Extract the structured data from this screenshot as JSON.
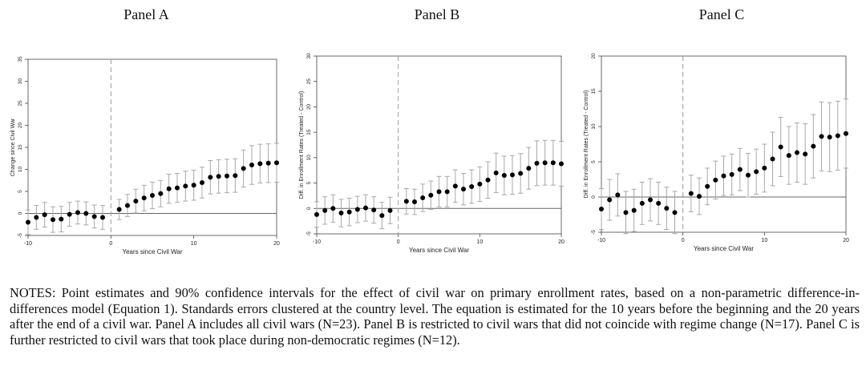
{
  "chart_data": [
    {
      "type": "scatter",
      "title": "Panel A",
      "xlabel": "Years since Civil War",
      "ylabel": "Change since Civil War",
      "xlim": [
        -10,
        20
      ],
      "ylim": [
        -5,
        35
      ],
      "xticks": [
        -10,
        0,
        10,
        20
      ],
      "yticks": [
        -5,
        0,
        5,
        10,
        15,
        20,
        25,
        30,
        35
      ],
      "reference_x": 0,
      "reference_y": 0,
      "x": [
        -10,
        -9,
        -8,
        -7,
        -6,
        -5,
        -4,
        -3,
        -2,
        -1,
        1,
        2,
        3,
        4,
        5,
        6,
        7,
        8,
        9,
        10,
        11,
        12,
        13,
        14,
        15,
        16,
        17,
        18,
        19,
        20
      ],
      "y": [
        -2.0,
        -0.9,
        -0.3,
        -1.4,
        -1.3,
        -0.2,
        0.2,
        0.0,
        -0.7,
        -0.9,
        0.9,
        1.8,
        2.8,
        3.5,
        4.1,
        4.5,
        5.6,
        5.8,
        6.2,
        6.4,
        7.0,
        8.2,
        8.4,
        8.5,
        8.6,
        10.2,
        11.0,
        11.3,
        11.4,
        11.5
      ],
      "ci_low": [
        -4.8,
        -3.6,
        -3.1,
        -4.3,
        -4.2,
        -2.9,
        -2.4,
        -2.6,
        -3.3,
        -3.6,
        -1.4,
        -0.7,
        0.1,
        0.6,
        1.1,
        1.5,
        2.3,
        2.5,
        2.8,
        3.0,
        3.5,
        4.4,
        4.6,
        4.7,
        4.8,
        6.0,
        6.6,
        6.9,
        7.0,
        7.1
      ],
      "ci_high": [
        0.8,
        1.8,
        2.5,
        1.5,
        1.6,
        2.5,
        2.8,
        2.6,
        1.9,
        1.8,
        3.2,
        4.3,
        5.5,
        6.4,
        7.1,
        7.5,
        8.9,
        9.1,
        9.6,
        9.8,
        10.5,
        12.0,
        12.2,
        12.3,
        12.4,
        14.4,
        15.4,
        15.7,
        15.8,
        15.9
      ]
    },
    {
      "type": "scatter",
      "title": "Panel B",
      "xlabel": "Years since Civil War",
      "ylabel": "Diff. in Enrollment Rates (Treated - Control)",
      "xlim": [
        -10,
        20
      ],
      "ylim": [
        -5,
        30
      ],
      "xticks": [
        -10,
        0,
        10,
        20
      ],
      "yticks": [
        -5,
        0,
        5,
        10,
        15,
        20,
        25,
        30
      ],
      "reference_x": 0,
      "reference_y": 0,
      "x": [
        -10,
        -9,
        -8,
        -7,
        -6,
        -5,
        -4,
        -3,
        -2,
        -1,
        1,
        2,
        3,
        4,
        5,
        6,
        7,
        8,
        9,
        10,
        11,
        12,
        13,
        14,
        15,
        16,
        17,
        18,
        19,
        20
      ],
      "y": [
        -1.2,
        -0.4,
        0.0,
        -0.9,
        -0.7,
        -0.2,
        0.1,
        -0.3,
        -1.4,
        -0.4,
        1.4,
        1.3,
        2.1,
        2.6,
        3.3,
        3.3,
        4.4,
        3.8,
        4.3,
        4.8,
        5.6,
        7.0,
        6.5,
        6.6,
        6.9,
        7.9,
        8.9,
        9.0,
        9.0,
        8.8
      ],
      "ci_low": [
        -3.7,
        -3.1,
        -2.7,
        -3.6,
        -3.4,
        -2.8,
        -2.5,
        -2.9,
        -4.0,
        -3.0,
        -1.1,
        -1.2,
        -0.6,
        -0.2,
        0.3,
        0.3,
        1.2,
        0.7,
        1.0,
        1.4,
        2.0,
        3.1,
        2.7,
        2.8,
        3.0,
        3.8,
        4.5,
        4.6,
        4.6,
        4.4
      ],
      "ci_high": [
        1.3,
        2.3,
        2.7,
        1.8,
        2.0,
        2.4,
        2.7,
        2.3,
        1.2,
        2.2,
        3.9,
        3.8,
        4.8,
        5.4,
        6.3,
        6.3,
        7.6,
        6.9,
        7.6,
        8.2,
        9.2,
        10.9,
        10.3,
        10.4,
        10.8,
        12.0,
        13.3,
        13.4,
        13.4,
        13.2
      ]
    },
    {
      "type": "scatter",
      "title": "Panel C",
      "xlabel": "Years since Civil War",
      "ylabel": "Diff. in Enrollment Rates (Treated - Control)",
      "xlim": [
        -10,
        20
      ],
      "ylim": [
        -5,
        20
      ],
      "xticks": [
        -10,
        0,
        10,
        20
      ],
      "yticks": [
        -5,
        0,
        5,
        10,
        15,
        20
      ],
      "reference_x": 0,
      "reference_y": 0,
      "x": [
        -10,
        -9,
        -8,
        -7,
        -6,
        -5,
        -4,
        -3,
        -2,
        -1,
        1,
        2,
        3,
        4,
        5,
        6,
        7,
        8,
        9,
        10,
        11,
        12,
        13,
        14,
        15,
        16,
        17,
        18,
        19,
        20
      ],
      "y": [
        -1.7,
        -0.4,
        0.3,
        -2.2,
        -1.9,
        -0.9,
        -0.4,
        -0.9,
        -1.6,
        -2.2,
        0.5,
        0.1,
        1.5,
        2.4,
        3.0,
        3.2,
        3.9,
        3.1,
        3.6,
        4.1,
        5.4,
        7.1,
        5.9,
        6.3,
        6.1,
        7.2,
        8.6,
        8.5,
        8.7,
        9.0
      ],
      "ci_low": [
        -4.6,
        -3.3,
        -2.7,
        -5.2,
        -4.9,
        -3.9,
        -3.4,
        -3.9,
        -4.6,
        -5.2,
        -2.1,
        -2.5,
        -1.1,
        -0.3,
        0.2,
        0.3,
        0.9,
        0.0,
        0.4,
        0.7,
        1.6,
        2.9,
        1.8,
        2.1,
        1.8,
        2.7,
        3.7,
        3.6,
        3.8,
        4.1
      ],
      "ci_high": [
        1.2,
        2.5,
        3.3,
        0.8,
        1.1,
        2.1,
        2.6,
        2.1,
        1.4,
        0.8,
        3.1,
        2.7,
        4.1,
        5.1,
        5.8,
        6.1,
        6.9,
        6.2,
        6.8,
        7.5,
        9.2,
        11.3,
        10.0,
        10.5,
        10.4,
        11.7,
        13.5,
        13.4,
        13.6,
        13.9
      ]
    }
  ],
  "notes": "NOTES: Point estimates and 90% confidence intervals for the effect of civil war on primary enrollment rates, based on a non-parametric difference-in-differences model (Equation 1). Standards errors clustered at the country level. The equation is estimated for the 10 years before the beginning and the 20 years after the end of a civil war. Panel A includes all civil wars (N=23). Panel B is restricted to civil wars that did not coincide with regime change (N=17). Panel C is further restricted to civil wars that took place during non-democratic regimes (N=12)."
}
